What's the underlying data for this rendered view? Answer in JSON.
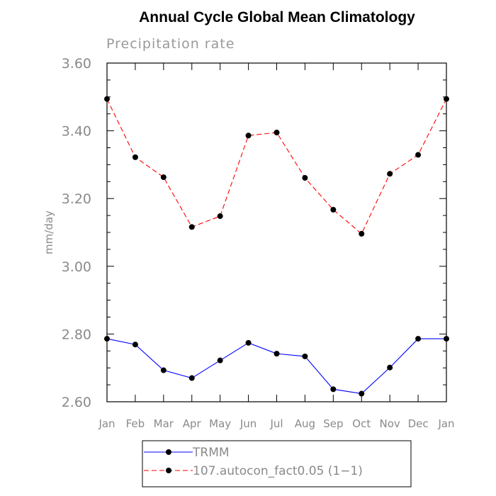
{
  "chart_data": {
    "type": "line",
    "title": "Annual Cycle Global Mean Climatology",
    "subtitle": "Precipitation rate",
    "xlabel": "",
    "ylabel": "mm/day",
    "categories": [
      "Jan",
      "Feb",
      "Mar",
      "Apr",
      "May",
      "Jun",
      "Jul",
      "Aug",
      "Sep",
      "Oct",
      "Nov",
      "Dec",
      "Jan"
    ],
    "ylim": [
      2.6,
      3.6
    ],
    "yticks": [
      2.6,
      2.8,
      3.0,
      3.2,
      3.4,
      3.6
    ],
    "ytick_labels": [
      "2.60",
      "2.80",
      "3.00",
      "3.20",
      "3.40",
      "3.60"
    ],
    "series": [
      {
        "name": "TRMM",
        "color": "#0000ff",
        "dash": "solid",
        "values": [
          2.786,
          2.769,
          2.693,
          2.67,
          2.722,
          2.774,
          2.742,
          2.734,
          2.637,
          2.624,
          2.701,
          2.786,
          2.786
        ]
      },
      {
        "name": "107.autocon_fact0.05 (1−1)",
        "color": "#ff0000",
        "dash": "dashed",
        "values": [
          3.494,
          3.322,
          3.263,
          3.116,
          3.148,
          3.386,
          3.395,
          3.261,
          3.167,
          3.096,
          3.273,
          3.329,
          3.494
        ]
      }
    ],
    "legend_position": "bottom-center",
    "grid": false
  }
}
